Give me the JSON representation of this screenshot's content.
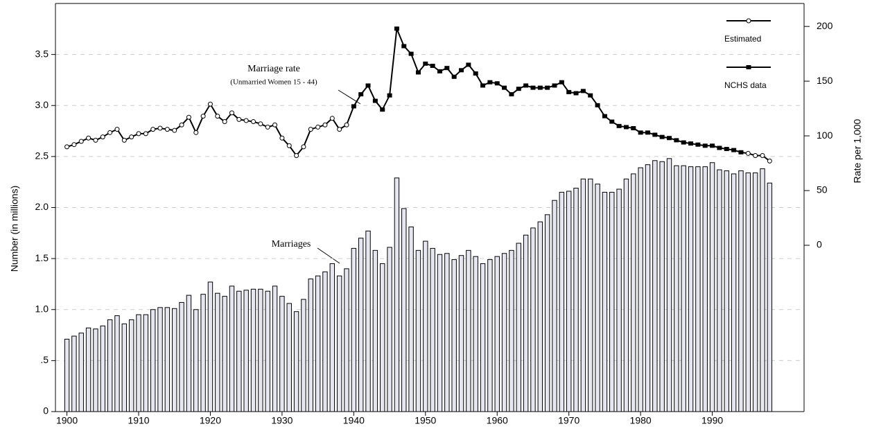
{
  "chart_data": {
    "type": "bar",
    "y_label": "Number (in millions)",
    "y2_label": "Rate per 1,000",
    "x": [
      1900,
      1901,
      1902,
      1903,
      1904,
      1905,
      1906,
      1907,
      1908,
      1909,
      1910,
      1911,
      1912,
      1913,
      1914,
      1915,
      1916,
      1917,
      1918,
      1919,
      1920,
      1921,
      1922,
      1923,
      1924,
      1925,
      1926,
      1927,
      1928,
      1929,
      1930,
      1931,
      1932,
      1933,
      1934,
      1935,
      1936,
      1937,
      1938,
      1939,
      1940,
      1941,
      1942,
      1943,
      1944,
      1945,
      1946,
      1947,
      1948,
      1949,
      1950,
      1951,
      1952,
      1953,
      1954,
      1955,
      1956,
      1957,
      1958,
      1959,
      1960,
      1961,
      1962,
      1963,
      1964,
      1965,
      1966,
      1967,
      1968,
      1969,
      1970,
      1971,
      1972,
      1973,
      1974,
      1975,
      1976,
      1977,
      1978,
      1979,
      1980,
      1981,
      1982,
      1983,
      1984,
      1985,
      1986,
      1987,
      1988,
      1989,
      1990,
      1991,
      1992,
      1993,
      1994,
      1995,
      1996,
      1997,
      1998
    ],
    "xlim": [
      1898.4,
      2002.8
    ],
    "xticks": [
      1900,
      1910,
      1920,
      1930,
      1940,
      1950,
      1960,
      1970,
      1980,
      1990
    ],
    "ylim": [
      0,
      4
    ],
    "yticks": [
      0,
      {
        "value": 0.5,
        "label": ".5"
      },
      {
        "value": 1,
        "label": "1.0"
      },
      1.5,
      {
        "value": 2,
        "label": "2.0"
      },
      2.5,
      {
        "value": 3,
        "label": "3.0"
      },
      3.5
    ],
    "y2lim": [
      -152,
      221
    ],
    "y2ticks": [
      0,
      50,
      100,
      150,
      200
    ],
    "grid": true,
    "series": [
      {
        "name": "Marriages",
        "type": "bar",
        "color": "#e6e6f0",
        "values": [
          0.71,
          0.74,
          0.77,
          0.82,
          0.81,
          0.84,
          0.9,
          0.94,
          0.86,
          0.9,
          0.95,
          0.95,
          1.0,
          1.02,
          1.02,
          1.01,
          1.07,
          1.14,
          1.0,
          1.15,
          1.27,
          1.16,
          1.13,
          1.23,
          1.18,
          1.19,
          1.2,
          1.2,
          1.18,
          1.23,
          1.13,
          1.06,
          0.98,
          1.1,
          1.3,
          1.33,
          1.37,
          1.45,
          1.33,
          1.4,
          1.6,
          1.7,
          1.77,
          1.58,
          1.45,
          1.61,
          2.29,
          1.99,
          1.81,
          1.58,
          1.67,
          1.6,
          1.54,
          1.55,
          1.49,
          1.53,
          1.58,
          1.52,
          1.45,
          1.49,
          1.52,
          1.55,
          1.58,
          1.65,
          1.73,
          1.8,
          1.86,
          1.93,
          2.07,
          2.15,
          2.16,
          2.19,
          2.28,
          2.28,
          2.23,
          2.15,
          2.15,
          2.18,
          2.28,
          2.33,
          2.39,
          2.42,
          2.46,
          2.45,
          2.48,
          2.41,
          2.41,
          2.4,
          2.4,
          2.4,
          2.44,
          2.37,
          2.36,
          2.33,
          2.36,
          2.34,
          2.34,
          2.38,
          2.24
        ]
      },
      {
        "name": "Estimated",
        "type": "line",
        "axis": "y2",
        "marker": "circle",
        "color": "#000000",
        "values": [
          90,
          92,
          95,
          98,
          96,
          99,
          103,
          106,
          96,
          99,
          102,
          102,
          106,
          107,
          106,
          105,
          110,
          117,
          103,
          118,
          129,
          118,
          113,
          121,
          115,
          114,
          113,
          111,
          108,
          110,
          98,
          91,
          82,
          90,
          106,
          108,
          110,
          116,
          106,
          110,
          null,
          null,
          null,
          null,
          null,
          null,
          null,
          null,
          null,
          null,
          null,
          null,
          null,
          null,
          null,
          null,
          null,
          null,
          null,
          null,
          null,
          null,
          null,
          null,
          null,
          null,
          null,
          null,
          null,
          null,
          null,
          null,
          null,
          null,
          null,
          null,
          null,
          null,
          null,
          null,
          null,
          null,
          null,
          null,
          null,
          null,
          null,
          null,
          null,
          null,
          null,
          null,
          null,
          null,
          null,
          84,
          82,
          82,
          77
        ]
      },
      {
        "name": "NCHS data",
        "type": "line",
        "axis": "y2",
        "marker": "square",
        "color": "#000000",
        "values": [
          null,
          null,
          null,
          null,
          null,
          null,
          null,
          null,
          null,
          null,
          null,
          null,
          null,
          null,
          null,
          null,
          null,
          null,
          null,
          null,
          null,
          null,
          null,
          null,
          null,
          null,
          null,
          null,
          null,
          null,
          null,
          null,
          null,
          null,
          null,
          null,
          null,
          null,
          null,
          null,
          127,
          138,
          146,
          132,
          124,
          137,
          198,
          182,
          175,
          158,
          166,
          164,
          159,
          162,
          154,
          160,
          165,
          157,
          146,
          149,
          148,
          144,
          138,
          143,
          146,
          144,
          144,
          144,
          146,
          149,
          140,
          139,
          141,
          137,
          128,
          118,
          113,
          109,
          108,
          107,
          103,
          103,
          101,
          99,
          98,
          96,
          94,
          93,
          92,
          91,
          91,
          89,
          88,
          87,
          85,
          null,
          null,
          null,
          null
        ]
      }
    ],
    "annotations": [
      "Marriage rate",
      "(Unmarried Women 15 - 44)"
    ]
  }
}
